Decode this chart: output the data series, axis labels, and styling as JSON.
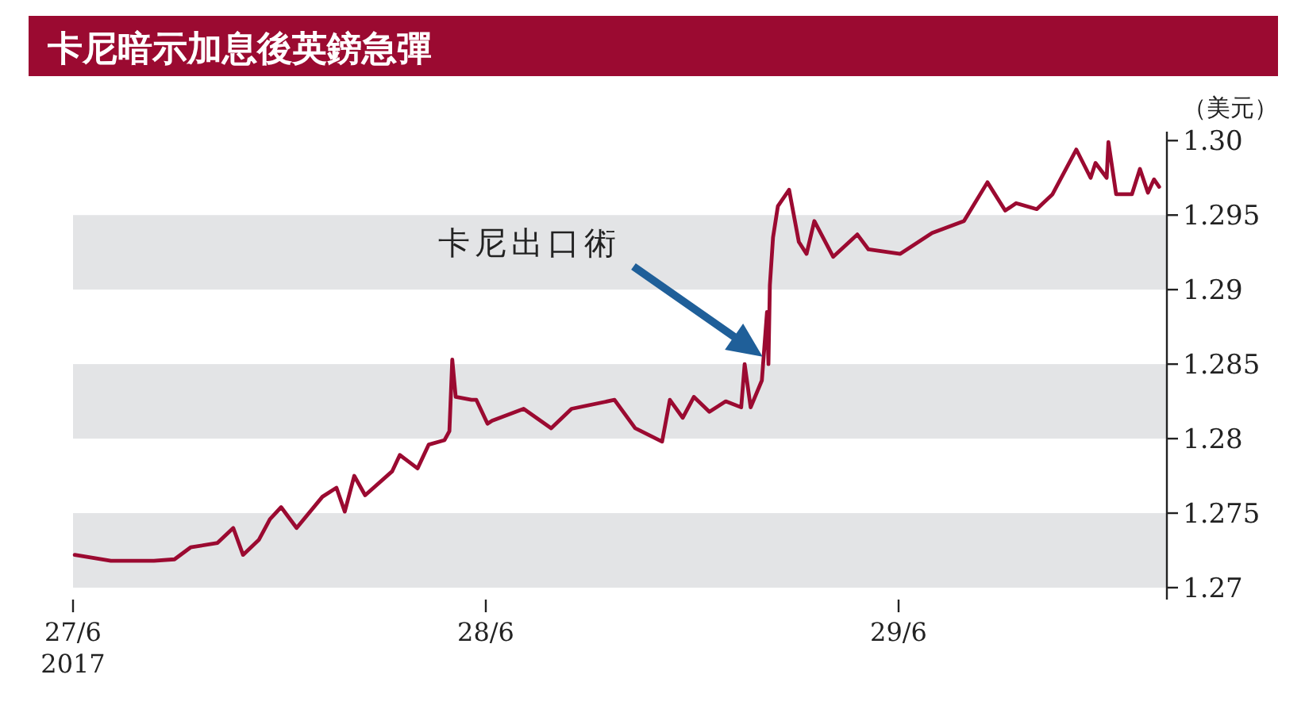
{
  "chart_data": {
    "type": "line",
    "title": "卡尼暗示加息後英鎊急彈",
    "ylabel": "（美元）",
    "x": [
      "2017-06-27T00:06",
      "2017-06-27T02:12",
      "2017-06-27T04:42",
      "2017-06-27T05:54",
      "2017-06-27T06:50",
      "2017-06-27T08:24",
      "2017-06-27T09:19",
      "2017-06-27T09:53",
      "2017-06-27T10:48",
      "2017-06-27T11:27",
      "2017-06-27T12:06",
      "2017-06-27T13:00",
      "2017-06-27T14:30",
      "2017-06-27T15:19",
      "2017-06-27T15:48",
      "2017-06-27T16:21",
      "2017-06-27T16:59",
      "2017-06-27T18:33",
      "2017-06-27T19:00",
      "2017-06-27T20:02",
      "2017-06-27T20:41",
      "2017-06-27T21:36",
      "2017-06-27T21:53",
      "2017-06-27T22:03",
      "2017-06-27T22:15",
      "2017-06-27T23:10",
      "2017-06-27T23:27",
      "2017-06-28T00:06",
      "2017-06-28T00:22",
      "2017-06-28T02:12",
      "2017-06-28T03:48",
      "2017-06-28T04:59",
      "2017-06-28T07:29",
      "2017-06-28T08:41",
      "2017-06-28T10:15",
      "2017-06-28T10:42",
      "2017-06-28T11:27",
      "2017-06-28T12:06",
      "2017-06-28T13:00",
      "2017-06-28T13:57",
      "2017-06-28T14:51",
      "2017-06-28T15:03",
      "2017-06-28T15:24",
      "2017-06-28T16:03",
      "2017-06-28T16:21",
      "2017-06-28T16:26",
      "2017-06-28T16:31",
      "2017-06-28T16:42",
      "2017-06-28T16:59",
      "2017-06-28T17:38",
      "2017-06-28T18:12",
      "2017-06-28T18:39",
      "2017-06-28T19:06",
      "2017-06-28T20:12",
      "2017-06-28T21:36",
      "2017-06-28T22:15",
      "2017-06-29T00:06",
      "2017-06-29T01:57",
      "2017-06-29T03:48",
      "2017-06-29T05:10",
      "2017-06-29T06:12",
      "2017-06-29T06:50",
      "2017-06-29T08:02",
      "2017-06-29T08:57",
      "2017-06-29T10:20",
      "2017-06-29T11:10",
      "2017-06-29T11:27",
      "2017-06-29T12:06",
      "2017-06-29T12:12",
      "2017-06-29T12:39",
      "2017-06-29T13:34",
      "2017-06-29T14:02",
      "2017-06-29T14:30",
      "2017-06-29T14:51",
      "2017-06-29T15:09"
    ],
    "values": [
      1.2722,
      1.2718,
      1.2718,
      1.2719,
      1.2727,
      1.273,
      1.274,
      1.2722,
      1.2732,
      1.2746,
      1.2754,
      1.274,
      1.2761,
      1.2767,
      1.2751,
      1.2775,
      1.2762,
      1.2778,
      1.2789,
      1.278,
      1.2796,
      1.2799,
      1.2805,
      1.2853,
      1.2828,
      1.2826,
      1.2826,
      1.281,
      1.2812,
      1.282,
      1.2807,
      1.282,
      1.2826,
      1.2807,
      1.2798,
      1.2826,
      1.2814,
      1.2828,
      1.2818,
      1.2825,
      1.2821,
      1.285,
      1.2821,
      1.2839,
      1.2885,
      1.285,
      1.2903,
      1.2935,
      1.2956,
      1.2967,
      1.2932,
      1.2924,
      1.2946,
      1.2922,
      1.2937,
      1.2927,
      1.2924,
      1.2938,
      1.2946,
      1.2972,
      1.2953,
      1.2958,
      1.2954,
      1.2964,
      1.2994,
      1.2975,
      1.2985,
      1.2975,
      1.2999,
      1.2964,
      1.2964,
      1.2981,
      1.2965,
      1.2974,
      1.2969
    ],
    "color": "#9b0a31",
    "line_style": "solid",
    "xlim": [
      "2017-06-27T00:00",
      "2017-06-29T15:36"
    ],
    "xticks": [
      {
        "value": "2017-06-27",
        "label": "27/6\n2017"
      },
      {
        "value": "2017-06-28",
        "label": "28/6"
      },
      {
        "value": "2017-06-29",
        "label": "29/6"
      }
    ],
    "ylim": [
      1.2692,
      1.3006
    ],
    "yticks": [
      1.27,
      1.275,
      1.28,
      1.285,
      1.29,
      1.295,
      {
        "value": 1.3,
        "label": "1.30"
      }
    ],
    "bands": [
      {
        "axis": "y",
        "from": 1.27,
        "to": 1.275,
        "color": "#e3e4e6"
      },
      {
        "axis": "y",
        "from": 1.28,
        "to": 1.285,
        "color": "#e3e4e6"
      },
      {
        "axis": "y",
        "from": 1.29,
        "to": 1.295,
        "color": "#e3e4e6"
      }
    ],
    "annotations": [
      "卡尼出口術"
    ]
  }
}
